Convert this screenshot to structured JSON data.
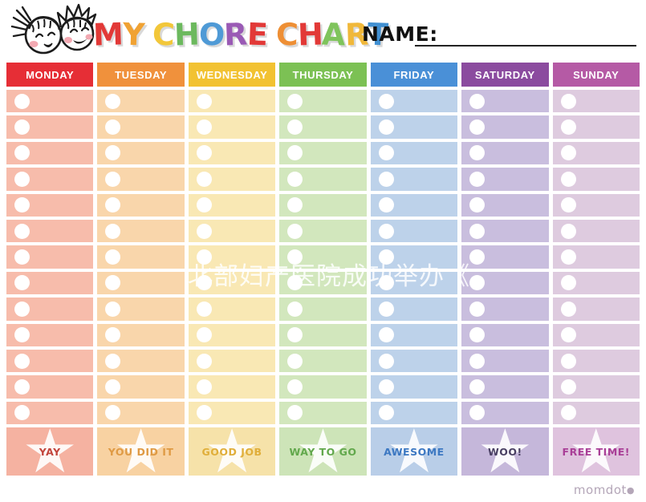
{
  "title": {
    "letters": [
      {
        "ch": "M",
        "color": "#e23937"
      },
      {
        "ch": "Y",
        "color": "#f0a233"
      },
      {
        "ch": " ",
        "color": "#000000"
      },
      {
        "ch": "C",
        "color": "#f2c73a"
      },
      {
        "ch": "H",
        "color": "#6cb95e"
      },
      {
        "ch": "O",
        "color": "#4f9ad6"
      },
      {
        "ch": "R",
        "color": "#9a5ab5"
      },
      {
        "ch": "E",
        "color": "#e23937"
      },
      {
        "ch": " ",
        "color": "#000000"
      },
      {
        "ch": "C",
        "color": "#ee8f35"
      },
      {
        "ch": "H",
        "color": "#e23937"
      },
      {
        "ch": "A",
        "color": "#7fc45c"
      },
      {
        "ch": "R",
        "color": "#f0b83a"
      },
      {
        "ch": "T",
        "color": "#4190d2"
      }
    ]
  },
  "name_label": "NAME:",
  "rows_per_day": 13,
  "days": [
    {
      "label": "MONDAY",
      "header_color": "#e62e36",
      "row_color": "#f7bcab",
      "reward_color": "#f5b2a1",
      "reward_label": "YAY",
      "reward_text_color": "#c2453c"
    },
    {
      "label": "TUESDAY",
      "header_color": "#f0913c",
      "row_color": "#f9d6ab",
      "reward_color": "#f8d2a2",
      "reward_label": "YOU DID IT",
      "reward_text_color": "#df9a44"
    },
    {
      "label": "WEDNESDAY",
      "header_color": "#f2c232",
      "row_color": "#f9e8b4",
      "reward_color": "#f6e2a9",
      "reward_label": "GOOD JOB",
      "reward_text_color": "#e0ae3a"
    },
    {
      "label": "THURSDAY",
      "header_color": "#7cc154",
      "row_color": "#d2e7bd",
      "reward_color": "#cde4b8",
      "reward_label": "WAY TO GO",
      "reward_text_color": "#62a84c"
    },
    {
      "label": "FRIDAY",
      "header_color": "#4a90d7",
      "row_color": "#bdd2ea",
      "reward_color": "#b9cee8",
      "reward_label": "AWESOME",
      "reward_text_color": "#3c78c2"
    },
    {
      "label": "SATURDAY",
      "header_color": "#8b4b9f",
      "row_color": "#c9bede",
      "reward_color": "#c5b7da",
      "reward_label": "WOO!",
      "reward_text_color": "#4a4063"
    },
    {
      "label": "SUNDAY",
      "header_color": "#b55aa5",
      "row_color": "#decbdf",
      "reward_color": "#dfc3de",
      "reward_label": "FREE TIME!",
      "reward_text_color": "#a93f97"
    }
  ],
  "watermark": "北部妇产医院成功举办《",
  "footer": {
    "brand": "momdot",
    "brand_mark": "●"
  }
}
